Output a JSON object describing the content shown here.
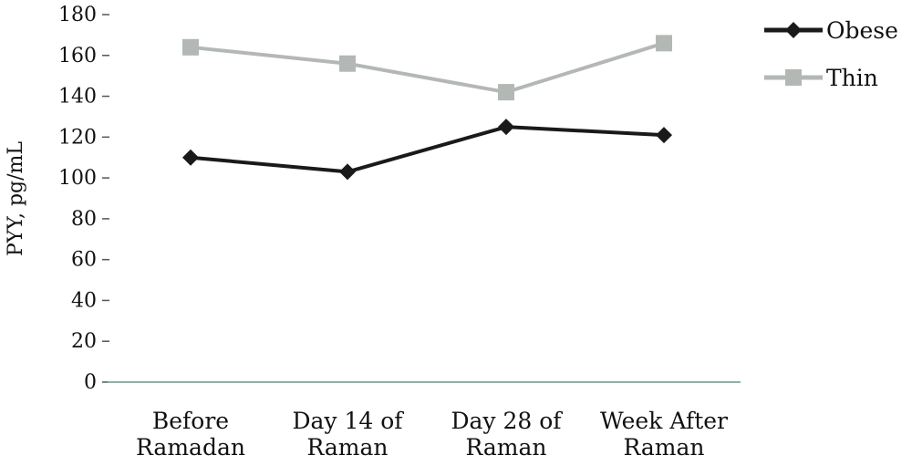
{
  "chart_data": {
    "type": "line",
    "categories": [
      [
        "Before",
        "Ramadan"
      ],
      [
        "Day 14 of",
        "Raman"
      ],
      [
        "Day 28 of",
        "Raman"
      ],
      [
        "Week After",
        "Raman"
      ]
    ],
    "series": [
      {
        "name": "Obese",
        "values": [
          110,
          103,
          125,
          121
        ],
        "color": "#1a1a1a",
        "marker": "diamond"
      },
      {
        "name": "Thin",
        "values": [
          164,
          156,
          142,
          166
        ],
        "color": "#b4b8b4",
        "marker": "square"
      }
    ],
    "title": "",
    "xlabel": "",
    "ylabel": "PYY, pg/mL",
    "ylim": [
      0,
      180
    ],
    "yticks": [
      "0",
      "20",
      "40",
      "60",
      "80",
      "100",
      "120",
      "140",
      "160",
      "180"
    ],
    "grid": false,
    "legend_position": "top-right"
  }
}
